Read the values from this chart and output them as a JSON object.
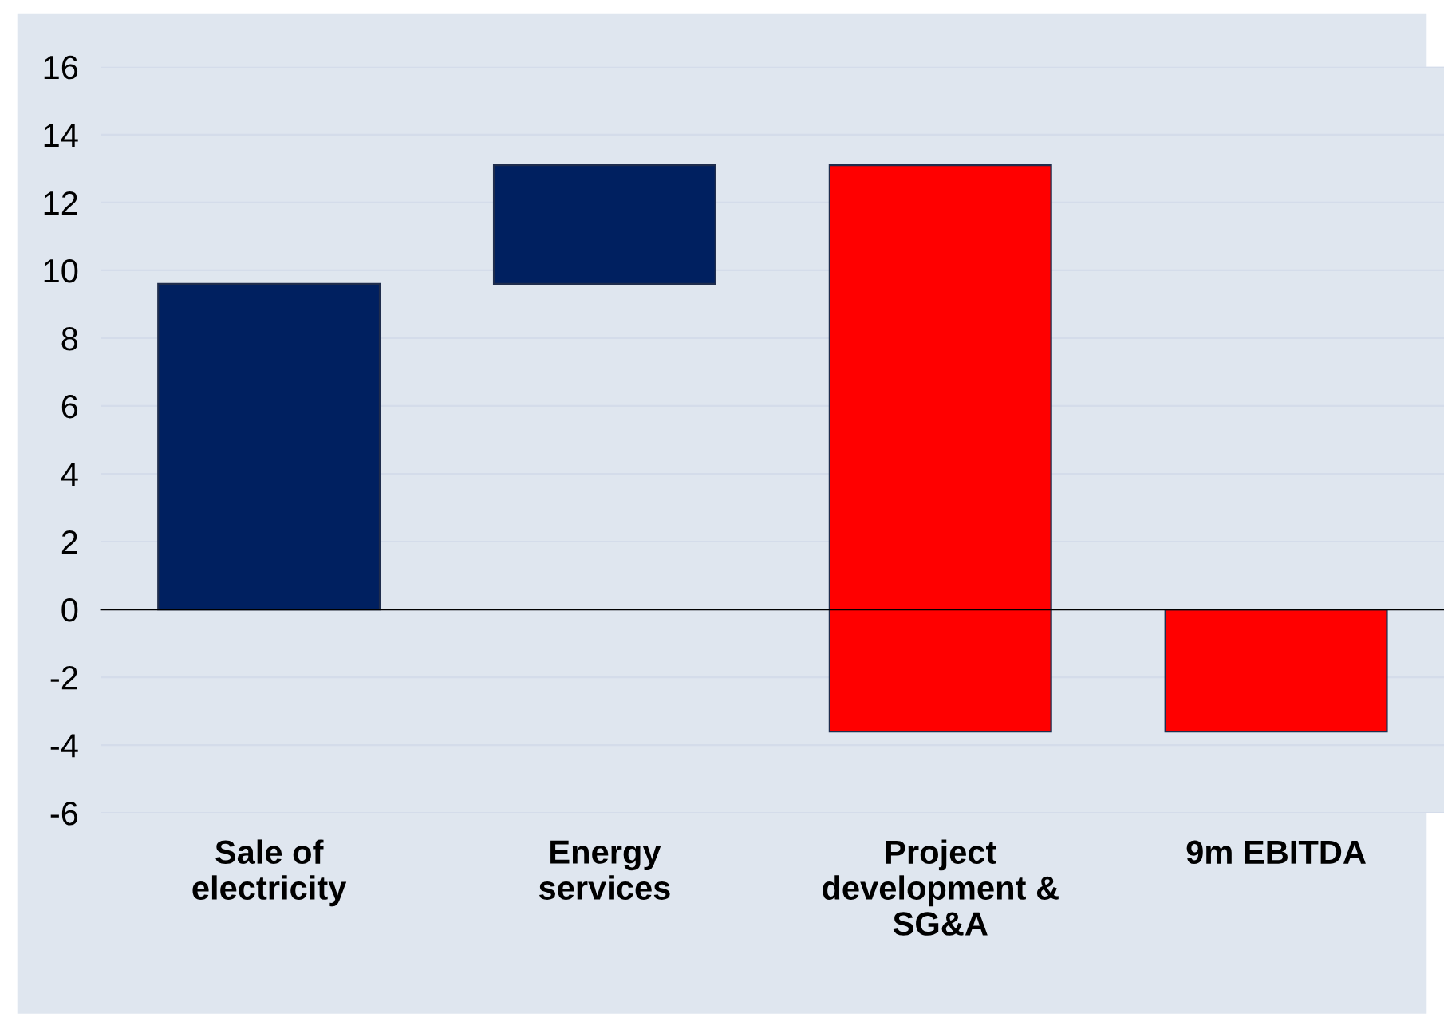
{
  "chart_data": {
    "type": "bar",
    "categories": [
      "Sale of electricity",
      "Energy services",
      "Project development & SG&A",
      "9m EBITDA"
    ],
    "values": [
      9.6,
      3.5,
      -16.7,
      -3.6
    ],
    "base": [
      0,
      9.6,
      13.1,
      0
    ],
    "colors": [
      "#002060",
      "#002060",
      "#ff0000",
      "#ff0000"
    ],
    "ylim": [
      -6,
      16
    ],
    "yticks": [
      -6,
      -4,
      -2,
      0,
      2,
      4,
      6,
      8,
      10,
      12,
      14,
      16
    ],
    "grid": "y",
    "legend": false
  }
}
